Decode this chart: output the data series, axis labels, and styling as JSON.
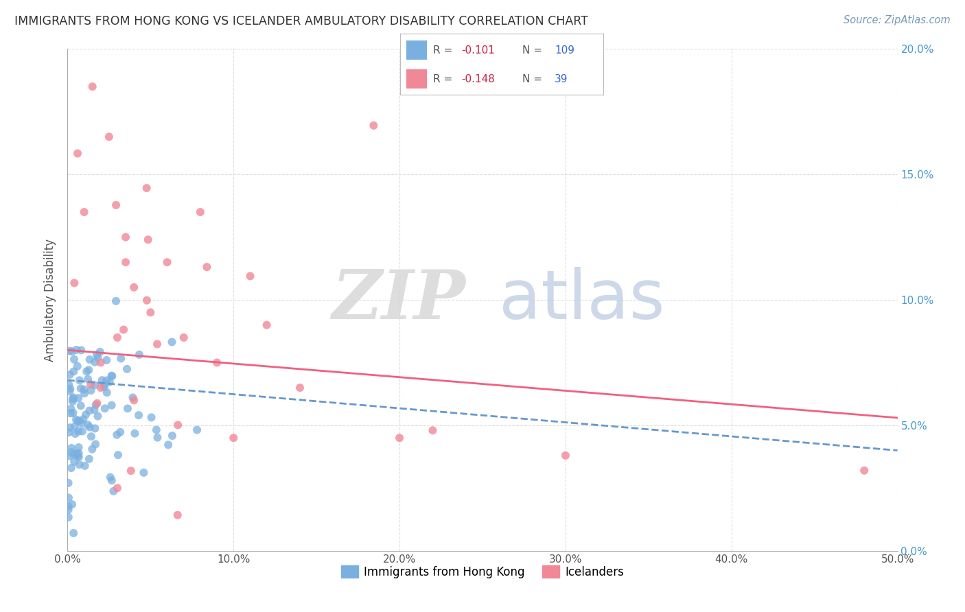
{
  "title": "IMMIGRANTS FROM HONG KONG VS ICELANDER AMBULATORY DISABILITY CORRELATION CHART",
  "source": "Source: ZipAtlas.com",
  "ylabel": "Ambulatory Disability",
  "legend_entries": [
    {
      "label": "Immigrants from Hong Kong",
      "color": "#a8c8f0",
      "R": -0.101,
      "N": 109,
      "line_color": "#6699cc",
      "line_style": "--"
    },
    {
      "label": "Icelanders",
      "color": "#f4a0b0",
      "R": -0.148,
      "N": 39,
      "line_color": "#f06080",
      "line_style": "-"
    }
  ],
  "xlim": [
    0.0,
    0.5
  ],
  "ylim": [
    0.0,
    0.2
  ],
  "xticks": [
    0.0,
    0.1,
    0.2,
    0.3,
    0.4,
    0.5
  ],
  "yticks": [
    0.0,
    0.05,
    0.1,
    0.15,
    0.2
  ],
  "background_color": "#ffffff",
  "grid_color": "#dddddd",
  "hk_scatter_color": "#7ab0e0",
  "ice_scatter_color": "#f08898",
  "legend_R_color": "#cc2244",
  "legend_N_color": "#3366cc",
  "title_color": "#333333",
  "seed": 42,
  "hk_line_y0": 0.068,
  "hk_line_y1": 0.04,
  "ice_line_y0": 0.08,
  "ice_line_y1": 0.053
}
